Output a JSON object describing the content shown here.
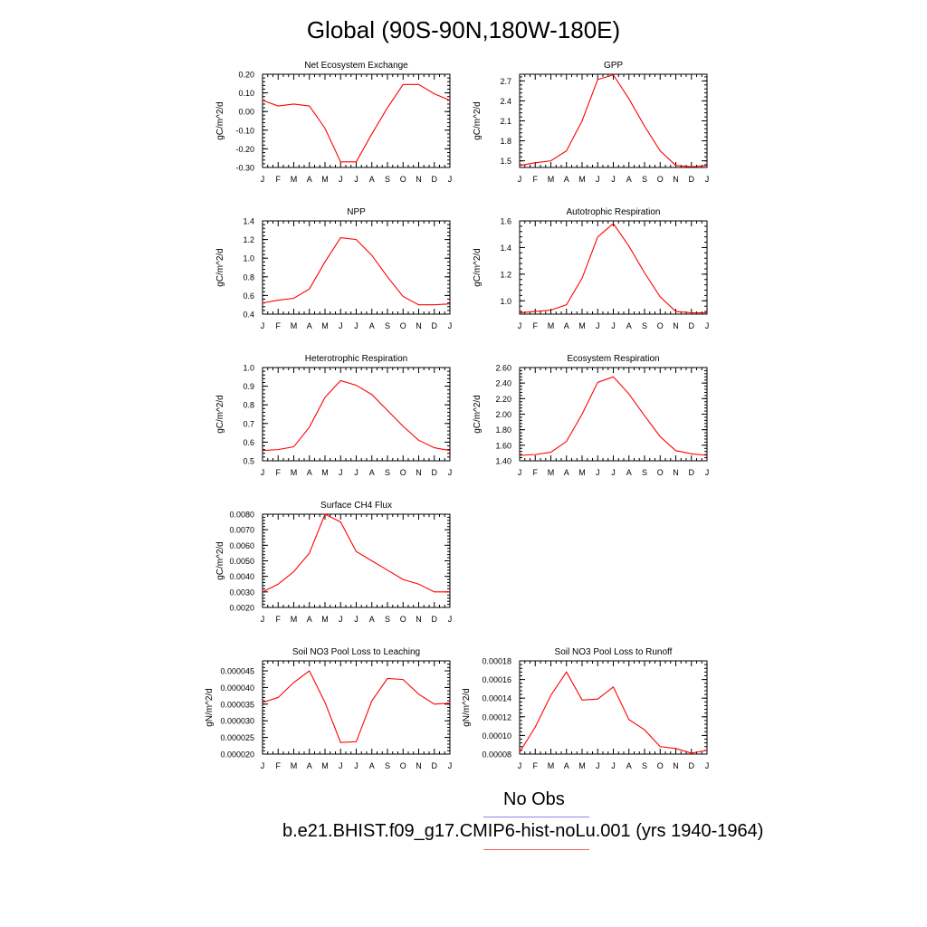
{
  "title": "Global (90S-90N,180W-180E)",
  "legend": {
    "obs_label": "No Obs",
    "run_label": "b.e21.BHIST.f09_g17.CMIP6-hist-noLu.001 (yrs 1940-1964)"
  },
  "colors": {
    "series": "#ff0000",
    "obs_line": "#8888ee",
    "run_line": "#ee6666"
  },
  "chart_data": [
    {
      "type": "line",
      "title": "Net Ecosystem Exchange",
      "ylabel": "gC/m^2/d",
      "categories": [
        "J",
        "F",
        "M",
        "A",
        "M",
        "J",
        "J",
        "A",
        "S",
        "O",
        "N",
        "D",
        "J"
      ],
      "ylim": [
        -0.3,
        0.2
      ],
      "yticks": [
        "0.20",
        "0.10",
        "0.00",
        "-0.10",
        "-0.20",
        "-0.30"
      ],
      "series": [
        {
          "values": [
            0.06,
            0.03,
            0.04,
            0.03,
            -0.09,
            -0.27,
            -0.27,
            -0.12,
            0.02,
            0.145,
            0.145,
            0.095,
            0.06
          ]
        }
      ]
    },
    {
      "type": "line",
      "title": "GPP",
      "ylabel": "gC/m^2/d",
      "categories": [
        "J",
        "F",
        "M",
        "A",
        "M",
        "J",
        "J",
        "A",
        "S",
        "O",
        "N",
        "D",
        "J"
      ],
      "ylim": [
        1.4,
        2.8
      ],
      "yticks": [
        "2.7",
        "2.4",
        "2.1",
        "1.8",
        "1.5"
      ],
      "series": [
        {
          "values": [
            1.43,
            1.47,
            1.5,
            1.65,
            2.1,
            2.72,
            2.79,
            2.43,
            2.02,
            1.65,
            1.43,
            1.41,
            1.43
          ]
        }
      ]
    },
    {
      "type": "line",
      "title": "NPP",
      "ylabel": "gC/m^2/d",
      "categories": [
        "J",
        "F",
        "M",
        "A",
        "M",
        "J",
        "J",
        "A",
        "S",
        "O",
        "N",
        "D",
        "J"
      ],
      "ylim": [
        0.4,
        1.4
      ],
      "yticks": [
        "1.4",
        "1.2",
        "1.0",
        "0.8",
        "0.6",
        "0.4"
      ],
      "series": [
        {
          "values": [
            0.52,
            0.55,
            0.57,
            0.67,
            0.96,
            1.22,
            1.2,
            1.03,
            0.8,
            0.59,
            0.5,
            0.5,
            0.51
          ]
        }
      ]
    },
    {
      "type": "line",
      "title": "Autotrophic Respiration",
      "ylabel": "gC/m^2/d",
      "categories": [
        "J",
        "F",
        "M",
        "A",
        "M",
        "J",
        "J",
        "A",
        "S",
        "O",
        "N",
        "D",
        "J"
      ],
      "ylim": [
        0.9,
        1.6
      ],
      "yticks": [
        "1.6",
        "1.4",
        "1.2",
        "1.0"
      ],
      "series": [
        {
          "values": [
            0.91,
            0.92,
            0.93,
            0.97,
            1.17,
            1.48,
            1.58,
            1.41,
            1.21,
            1.03,
            0.92,
            0.91,
            0.91
          ]
        }
      ]
    },
    {
      "type": "line",
      "title": "Heterotrophic Respiration",
      "ylabel": "gC/m^2/d",
      "categories": [
        "J",
        "F",
        "M",
        "A",
        "M",
        "J",
        "J",
        "A",
        "S",
        "O",
        "N",
        "D",
        "J"
      ],
      "ylim": [
        0.5,
        1.0
      ],
      "yticks": [
        "1.0",
        "0.9",
        "0.8",
        "0.7",
        "0.6",
        "0.5"
      ],
      "series": [
        {
          "values": [
            0.555,
            0.56,
            0.575,
            0.68,
            0.84,
            0.93,
            0.905,
            0.855,
            0.77,
            0.685,
            0.61,
            0.57,
            0.555
          ]
        }
      ]
    },
    {
      "type": "line",
      "title": "Ecosystem Respiration",
      "ylabel": "gC/m^2/d",
      "categories": [
        "J",
        "F",
        "M",
        "A",
        "M",
        "J",
        "J",
        "A",
        "S",
        "O",
        "N",
        "D",
        "J"
      ],
      "ylim": [
        1.4,
        2.6
      ],
      "yticks": [
        "2.60",
        "2.40",
        "2.20",
        "2.00",
        "1.80",
        "1.60",
        "1.40"
      ],
      "series": [
        {
          "values": [
            1.47,
            1.48,
            1.51,
            1.65,
            2.0,
            2.41,
            2.48,
            2.26,
            1.98,
            1.71,
            1.53,
            1.49,
            1.47
          ]
        }
      ]
    },
    {
      "type": "line",
      "title": "Surface CH4 Flux",
      "ylabel": "gC/m^2/d",
      "categories": [
        "J",
        "F",
        "M",
        "A",
        "M",
        "J",
        "J",
        "A",
        "S",
        "O",
        "N",
        "D",
        "J"
      ],
      "ylim": [
        0.002,
        0.008
      ],
      "yticks": [
        "0.0080",
        "0.0070",
        "0.0060",
        "0.0050",
        "0.0040",
        "0.0030",
        "0.0020"
      ],
      "series": [
        {
          "values": [
            0.003,
            0.0035,
            0.0043,
            0.0055,
            0.008,
            0.0075,
            0.0056,
            0.005,
            0.0044,
            0.0038,
            0.0035,
            0.003,
            0.003
          ]
        }
      ]
    },
    {
      "type": "line",
      "title": "Soil NO3 Pool Loss to Leaching",
      "ylabel": "gN/m^2/d",
      "categories": [
        "J",
        "F",
        "M",
        "A",
        "M",
        "J",
        "J",
        "A",
        "S",
        "O",
        "N",
        "D",
        "J"
      ],
      "ylim": [
        2e-05,
        4.8e-05
      ],
      "yticks": [
        "0.000045",
        "0.000040",
        "0.000035",
        "0.000030",
        "0.000025",
        "0.000020"
      ],
      "series": [
        {
          "values": [
            3.55e-05,
            3.7e-05,
            4.15e-05,
            4.5e-05,
            3.55e-05,
            2.35e-05,
            2.37e-05,
            3.6e-05,
            4.27e-05,
            4.24e-05,
            3.8e-05,
            3.5e-05,
            3.53e-05
          ]
        }
      ]
    },
    {
      "type": "line",
      "title": "Soil NO3 Pool Loss to Runoff",
      "ylabel": "gN/m^2/d",
      "categories": [
        "J",
        "F",
        "M",
        "A",
        "M",
        "J",
        "J",
        "A",
        "S",
        "O",
        "N",
        "D",
        "J"
      ],
      "ylim": [
        8e-05,
        0.00018
      ],
      "yticks": [
        "0.00018",
        "0.00016",
        "0.00014",
        "0.00012",
        "0.00010",
        "0.00008"
      ],
      "series": [
        {
          "values": [
            8.2e-05,
            0.000109,
            0.000143,
            0.000168,
            0.000138,
            0.000139,
            0.000152,
            0.000117,
            0.000106,
            8.8e-05,
            8.6e-05,
            8.1e-05,
            8.4e-05
          ]
        }
      ]
    }
  ]
}
